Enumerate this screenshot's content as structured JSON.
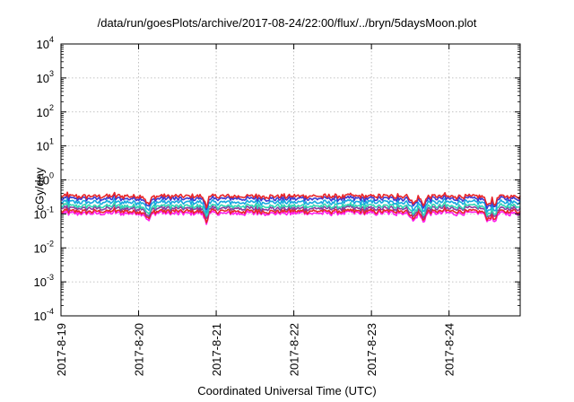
{
  "chart_data": {
    "type": "line",
    "title": "/data/run/goesPlots/archive/2017-08-24/22:00/flux/../bryn/5daysMoon.plot",
    "xlabel": "Coordinated Universal Time (UTC)",
    "ylabel": "cGy/day",
    "yscale": "log",
    "ylim": [
      0.0001,
      10000
    ],
    "xlim": [
      "2017-08-19",
      "2017-08-24 22:00"
    ],
    "x_ticks": [
      "2017-8-19",
      "2017-8-20",
      "2017-8-21",
      "2017-8-22",
      "2017-8-23",
      "2017-8-24"
    ],
    "y_ticks": [
      {
        "base": "10",
        "exp": "4"
      },
      {
        "base": "10",
        "exp": "3"
      },
      {
        "base": "10",
        "exp": "2"
      },
      {
        "base": "10",
        "exp": "1"
      },
      {
        "base": "10",
        "exp": "0"
      },
      {
        "base": "10",
        "exp": "-1"
      },
      {
        "base": "10",
        "exp": "-2"
      },
      {
        "base": "10",
        "exp": "-3"
      },
      {
        "base": "10",
        "exp": "-4"
      }
    ],
    "grid": true,
    "series": [
      {
        "color": "#e8262a",
        "approx_level": 0.33
      },
      {
        "color": "#3a3bd0",
        "approx_level": 0.28
      },
      {
        "color": "#16a9e0",
        "approx_level": 0.22
      },
      {
        "color": "#2fd6b4",
        "approx_level": 0.17
      },
      {
        "color": "#8a3b9e",
        "approx_level": 0.145
      },
      {
        "color": "#e8262a",
        "approx_level": 0.12
      },
      {
        "color": "#ff1bea",
        "approx_level": 0.105
      }
    ],
    "dips": [
      "2017-08-20 03:00",
      "2017-08-20 21:00",
      "2017-08-23 13:00",
      "2017-08-23 16:00",
      "2017-08-24 12:00",
      "2017-08-24 14:00"
    ]
  }
}
